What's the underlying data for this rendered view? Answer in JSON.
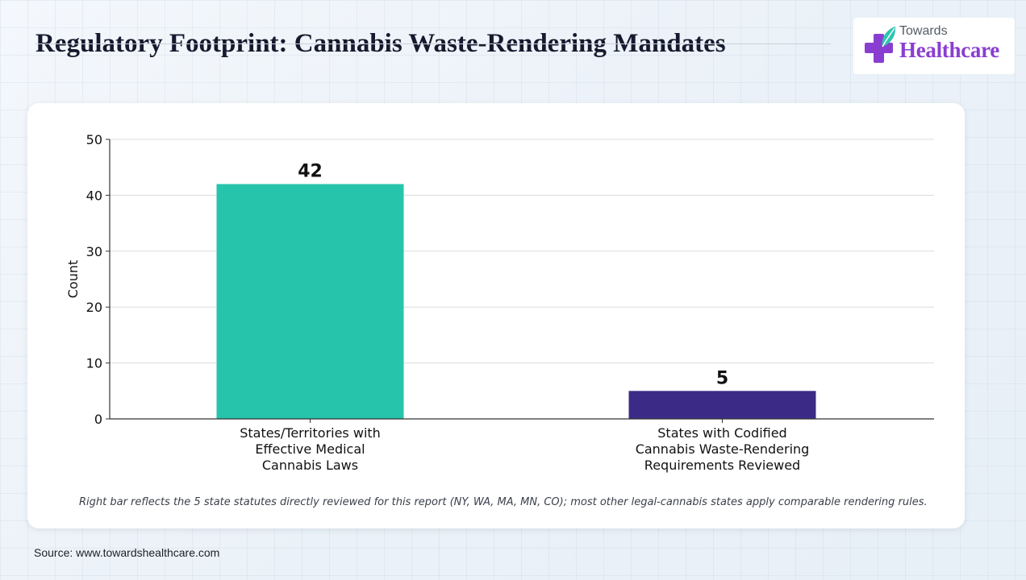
{
  "header": {
    "title": "Regulatory Footprint: Cannabis Waste-Rendering Mandates"
  },
  "logo": {
    "line1": "Towards",
    "line2": "Healthcare",
    "icon": "medical-cross-leaf-icon"
  },
  "chart_data": {
    "type": "bar",
    "categories": [
      [
        "States/Territories with",
        "Effective Medical",
        "Cannabis Laws"
      ],
      [
        "States with Codified",
        "Cannabis Waste-Rendering",
        "Requirements Reviewed"
      ]
    ],
    "values": [
      42,
      5
    ],
    "data_labels": [
      "42",
      "5"
    ],
    "colors": [
      "#26c4aa",
      "#3b2b87"
    ],
    "xlabel": "",
    "ylabel": "Count",
    "ylim": [
      0,
      50
    ],
    "yticks": [
      0,
      10,
      20,
      30,
      40,
      50
    ],
    "grid": true
  },
  "footnote": "Right bar reflects the 5 state statutes directly reviewed for this report (NY, WA, MA, MN, CO); most other legal-cannabis states apply comparable rendering rules.",
  "source": "Source: www.towardshealthcare.com"
}
